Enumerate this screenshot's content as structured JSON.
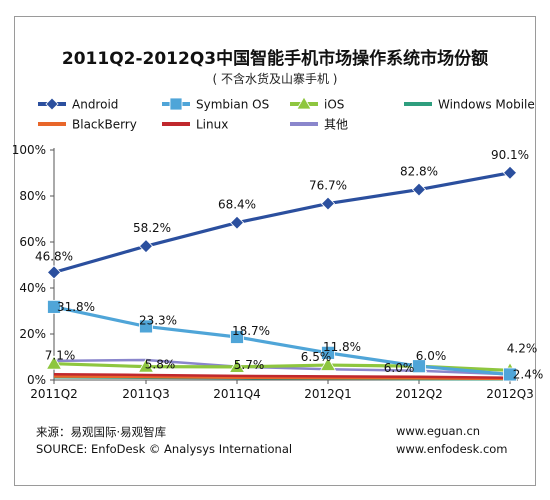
{
  "header": {
    "title": "2011Q2-2012Q3中国智能手机市场操作系统市场份额",
    "subtitle": "( 不含水货及山寨手机 )"
  },
  "chart_data": {
    "type": "line",
    "categories": [
      "2011Q2",
      "2011Q3",
      "2011Q4",
      "2012Q1",
      "2012Q2",
      "2012Q3"
    ],
    "y_ticks": [
      "0%",
      "20%",
      "40%",
      "60%",
      "80%",
      "100%"
    ],
    "ylim": [
      0,
      100
    ],
    "legend_position": "top",
    "series": [
      {
        "name": "Android",
        "color": "#2b4f9e",
        "marker": "diamond",
        "values": [
          46.8,
          58.2,
          68.4,
          76.7,
          82.8,
          90.1
        ],
        "labels": [
          "46.8%",
          "58.2%",
          "68.4%",
          "76.7%",
          "82.8%",
          "90.1%"
        ]
      },
      {
        "name": "Symbian OS",
        "color": "#4fa5d8",
        "marker": "square",
        "values": [
          31.8,
          23.3,
          18.7,
          11.8,
          6.0,
          2.4
        ],
        "labels": [
          "31.8%",
          "23.3%",
          "18.7%",
          "11.8%",
          "6.0%",
          "2.4%"
        ]
      },
      {
        "name": "iOS",
        "color": "#8ec63f",
        "marker": "triangle",
        "values": [
          7.1,
          5.8,
          5.7,
          6.5,
          6.0,
          4.2
        ],
        "labels": [
          "7.1%",
          "5.8%",
          "5.7%",
          "6.5%",
          "6.0%",
          "4.2%"
        ]
      },
      {
        "name": "Windows Mobile",
        "color": "#2e9e7e",
        "marker": "none",
        "values": [
          1.2,
          1.0,
          0.8,
          0.6,
          0.4,
          0.3
        ],
        "labels": []
      },
      {
        "name": "BlackBerry",
        "color": "#e8662a",
        "marker": "none",
        "values": [
          1.5,
          1.3,
          1.0,
          0.8,
          0.7,
          0.5
        ],
        "labels": []
      },
      {
        "name": "Linux",
        "color": "#c0282d",
        "marker": "none",
        "values": [
          2.5,
          2.2,
          1.8,
          1.6,
          1.4,
          1.0
        ],
        "labels": []
      },
      {
        "name": "其他",
        "color": "#8a86cc",
        "marker": "none",
        "values": [
          8.3,
          8.7,
          5.8,
          4.7,
          4.0,
          2.5
        ],
        "labels": []
      }
    ]
  },
  "footer": {
    "source_cn": "来源：易观国际·易观智库",
    "source_en": "SOURCE: EnfoDesk © Analysys International",
    "url1": "www.eguan.cn",
    "url2": "www.enfodesk.com"
  }
}
